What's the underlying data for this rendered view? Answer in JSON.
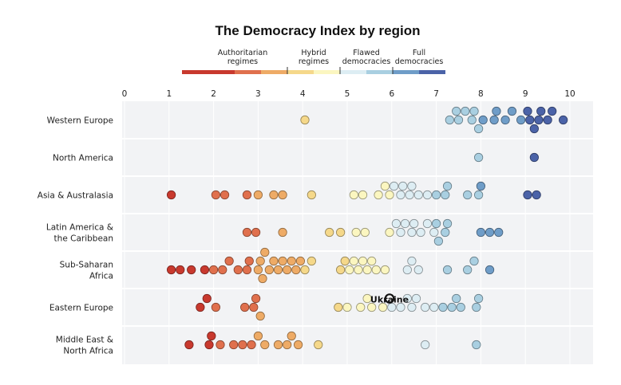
{
  "chart_data": {
    "type": "scatter",
    "subtype": "beeswarm",
    "title": "The Democracy Index by region",
    "xlabel": "",
    "ylabel": "",
    "xlim": [
      0,
      10
    ],
    "x_ticks": [
      "0",
      "1",
      "2",
      "3",
      "4",
      "5",
      "6",
      "7",
      "8",
      "9",
      "10"
    ],
    "grid": true,
    "legend": {
      "placement": "top-center",
      "categories": [
        {
          "label": "Authoritarian regimes",
          "line1": "Authoritarian",
          "line2": "regimes",
          "range": [
            0,
            4
          ]
        },
        {
          "label": "Hybrid regimes",
          "line1": "Hybrid",
          "line2": "regimes",
          "range": [
            4,
            6
          ]
        },
        {
          "label": "Flawed democracies",
          "line1": "Flawed",
          "line2": "democracies",
          "range": [
            6,
            8
          ]
        },
        {
          "label": "Full democracies",
          "line1": "Full",
          "line2": "democracies",
          "range": [
            8,
            10
          ]
        }
      ],
      "bins": [
        {
          "range": [
            0,
            2
          ],
          "color": "#c8392e"
        },
        {
          "range": [
            2,
            3
          ],
          "color": "#e0704d"
        },
        {
          "range": [
            3,
            4
          ],
          "color": "#eeab66"
        },
        {
          "range": [
            4,
            5
          ],
          "color": "#f5d88a"
        },
        {
          "range": [
            5,
            6
          ],
          "color": "#fbf6c0"
        },
        {
          "range": [
            6,
            7
          ],
          "color": "#ddedf3"
        },
        {
          "range": [
            7,
            8
          ],
          "color": "#a9cfe1"
        },
        {
          "range": [
            8,
            9
          ],
          "color": "#6f9dc8"
        },
        {
          "range": [
            9,
            10
          ],
          "color": "#4b63a8"
        }
      ]
    },
    "regions": [
      {
        "name": "Western Europe",
        "line1": "Western Europe",
        "line2": "",
        "values": [
          4.05,
          7.3,
          7.45,
          7.5,
          7.65,
          7.8,
          7.85,
          7.95,
          8.05,
          8.3,
          8.35,
          8.55,
          8.7,
          8.9,
          9.05,
          9.1,
          9.2,
          9.3,
          9.35,
          9.5,
          9.6,
          9.85
        ]
      },
      {
        "name": "North America",
        "line1": "North America",
        "line2": "",
        "values": [
          7.95,
          9.2
        ]
      },
      {
        "name": "Asia & Australasia",
        "line1": "Asia & Australasia",
        "line2": "",
        "values": [
          1.05,
          2.05,
          2.25,
          2.75,
          3.0,
          3.35,
          3.55,
          4.2,
          5.15,
          5.35,
          5.7,
          5.85,
          5.95,
          6.05,
          6.2,
          6.25,
          6.4,
          6.45,
          6.6,
          6.8,
          7.0,
          7.2,
          7.25,
          7.7,
          7.95,
          8.0,
          9.05,
          9.25
        ]
      },
      {
        "name": "Latin America & the Caribbean",
        "line1": "Latin America &",
        "line2": "the Caribbean",
        "values": [
          2.75,
          2.95,
          3.55,
          4.6,
          4.85,
          5.2,
          5.4,
          5.95,
          6.1,
          6.2,
          6.3,
          6.45,
          6.5,
          6.65,
          6.8,
          6.95,
          7.0,
          7.05,
          7.2,
          7.25,
          8.0,
          8.2,
          8.4
        ]
      },
      {
        "name": "Sub-Saharan Africa",
        "line1": "Sub-Saharan",
        "line2": "Africa",
        "values": [
          1.05,
          1.25,
          1.5,
          1.8,
          2.0,
          2.2,
          2.35,
          2.55,
          2.75,
          2.8,
          3.0,
          3.05,
          3.1,
          3.15,
          3.25,
          3.35,
          3.45,
          3.55,
          3.65,
          3.75,
          3.85,
          3.95,
          4.05,
          4.2,
          4.85,
          4.95,
          5.05,
          5.15,
          5.25,
          5.35,
          5.45,
          5.55,
          5.65,
          5.85,
          6.35,
          6.45,
          6.6,
          7.25,
          7.7,
          7.85,
          8.2
        ]
      },
      {
        "name": "Eastern Europe",
        "line1": "Eastern Europe",
        "line2": "",
        "values": [
          1.7,
          1.85,
          2.05,
          2.7,
          2.9,
          2.95,
          3.05,
          4.8,
          5.0,
          5.3,
          5.45,
          5.55,
          5.8,
          5.95,
          6.0,
          6.2,
          6.35,
          6.45,
          6.55,
          6.75,
          6.95,
          7.15,
          7.35,
          7.45,
          7.55,
          7.95,
          7.9
        ]
      },
      {
        "name": "Middle East & North Africa",
        "line1": "Middle East &",
        "line2": "North Africa",
        "values": [
          1.45,
          1.9,
          1.95,
          2.15,
          2.45,
          2.65,
          2.85,
          3.0,
          3.15,
          3.45,
          3.65,
          3.75,
          3.9,
          4.35,
          6.75,
          7.9
        ]
      }
    ],
    "annotations": [
      {
        "label": "Ukraine",
        "region": "Eastern Europe",
        "value": 5.95
      }
    ]
  }
}
